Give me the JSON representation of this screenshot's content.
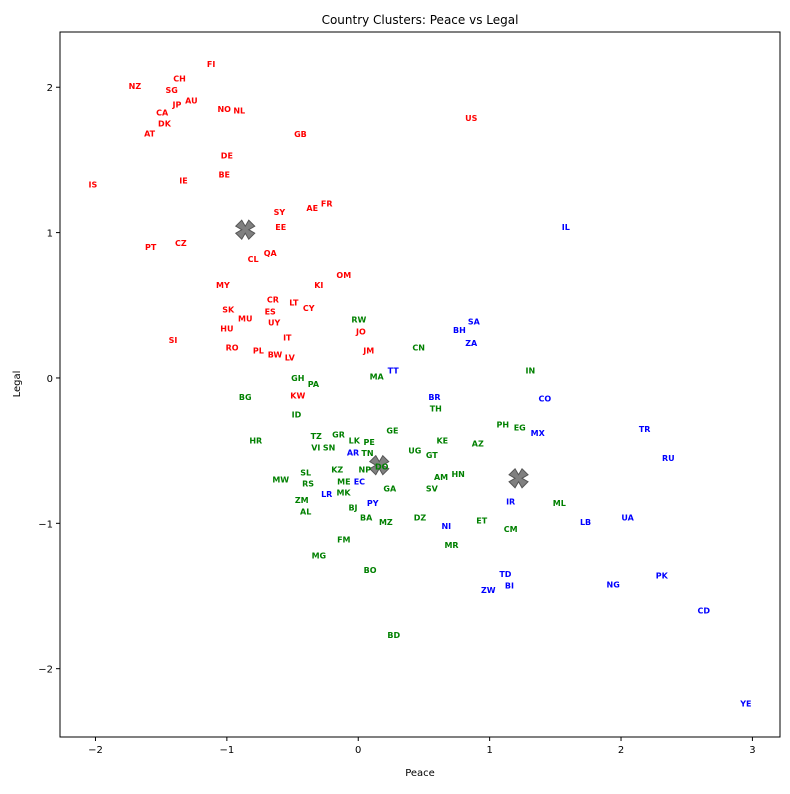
{
  "chart_data": {
    "type": "scatter",
    "title": "Country Clusters: Peace vs Legal",
    "xlabel": "Peace",
    "ylabel": "Legal",
    "xlim": [
      -2.27,
      3.21
    ],
    "ylim": [
      -2.47,
      2.38
    ],
    "xticks": [
      -2,
      -1,
      0,
      1,
      2,
      3
    ],
    "yticks": [
      -2,
      -1,
      0,
      1,
      2
    ],
    "grid": false,
    "cluster_colors": {
      "0": "#ff0000",
      "1": "#008000",
      "2": "#0000ff"
    },
    "centroid_color": "#808080",
    "centroids": [
      [
        -0.86,
        1.02
      ],
      [
        0.16,
        -0.6
      ],
      [
        1.22,
        -0.69
      ]
    ],
    "points": [
      [
        "FI",
        -1.12,
        2.16,
        0
      ],
      [
        "NZ",
        -1.7,
        2.01,
        0
      ],
      [
        "CH",
        -1.36,
        2.06,
        0
      ],
      [
        "SG",
        -1.42,
        1.98,
        0
      ],
      [
        "JP",
        -1.38,
        1.88,
        0
      ],
      [
        "AU",
        -1.27,
        1.91,
        0
      ],
      [
        "CA",
        -1.47,
        1.84,
        0
      ],
      [
        "DK",
        -1.49,
        1.77,
        0
      ],
      [
        "AT",
        -1.55,
        1.71,
        0
      ],
      [
        "NO",
        -1.02,
        1.85,
        0
      ],
      [
        "NL",
        -1.02,
        1.84,
        0
      ],
      [
        "GB",
        -0.44,
        1.68,
        0
      ],
      [
        "US",
        0.86,
        1.79,
        0
      ],
      [
        "DE",
        -1.0,
        1.53,
        0
      ],
      [
        "BE",
        -1.02,
        1.4,
        0
      ],
      [
        "IE",
        -1.33,
        1.36,
        0
      ],
      [
        "IS",
        -2.02,
        1.33,
        0
      ],
      [
        "SY",
        -0.6,
        1.14,
        0
      ],
      [
        "AE",
        -0.35,
        1.17,
        0
      ],
      [
        "FR",
        -0.24,
        1.2,
        0
      ],
      [
        "EE",
        -0.59,
        1.04,
        0
      ],
      [
        "PT",
        -1.58,
        0.9,
        0
      ],
      [
        "CZ",
        -1.35,
        0.93,
        0
      ],
      [
        "CL",
        -0.8,
        0.82,
        0
      ],
      [
        "QA",
        -0.67,
        0.86,
        0
      ],
      [
        "OM",
        -0.11,
        0.71,
        0
      ],
      [
        "KI",
        -0.3,
        0.64,
        0
      ],
      [
        "MY",
        -1.03,
        0.64,
        0
      ],
      [
        "CR",
        -0.65,
        0.54,
        0
      ],
      [
        "ES",
        -0.67,
        0.52,
        0
      ],
      [
        "LT",
        -0.49,
        0.52,
        0
      ],
      [
        "CY",
        -0.43,
        0.48,
        0
      ],
      [
        "SK",
        -0.99,
        0.47,
        0
      ],
      [
        "MU",
        -0.86,
        0.41,
        0
      ],
      [
        "UY",
        -0.64,
        0.43,
        0
      ],
      [
        "HU",
        -1.0,
        0.34,
        0
      ],
      [
        "IT",
        -0.54,
        0.28,
        0
      ],
      [
        "SI",
        -1.41,
        0.26,
        0
      ],
      [
        "RO",
        -0.96,
        0.21,
        0
      ],
      [
        "PL",
        -0.76,
        0.19,
        0
      ],
      [
        "BW",
        -0.71,
        0.16,
        0
      ],
      [
        "LV",
        -0.62,
        0.14,
        0
      ],
      [
        "JO",
        0.02,
        0.32,
        0
      ],
      [
        "JM",
        0.08,
        0.19,
        0
      ],
      [
        "KW",
        -0.46,
        -0.12,
        0
      ],
      [
        "RW",
        0.02,
        0.38,
        1
      ],
      [
        "CN",
        0.46,
        0.21,
        1
      ],
      [
        "MA",
        0.14,
        0.01,
        1
      ],
      [
        "GH",
        -0.46,
        0.0,
        1
      ],
      [
        "PA",
        -0.44,
        -0.04,
        1
      ],
      [
        "BG",
        -0.86,
        -0.13,
        1
      ],
      [
        "ID",
        -0.47,
        -0.25,
        1
      ],
      [
        "TH",
        0.59,
        -0.21,
        1
      ],
      [
        "IN",
        1.31,
        0.05,
        1
      ],
      [
        "PH",
        1.1,
        -0.32,
        1
      ],
      [
        "EG",
        1.13,
        -0.34,
        1
      ],
      [
        "HR",
        -0.78,
        -0.43,
        1
      ],
      [
        "TZ",
        -0.32,
        -0.4,
        1
      ],
      [
        "GR",
        -0.15,
        -0.39,
        1
      ],
      [
        "SN",
        -0.26,
        -0.45,
        1
      ],
      [
        "VI",
        -0.27,
        -0.48,
        1
      ],
      [
        "LK",
        -0.03,
        -0.43,
        1
      ],
      [
        "PE",
        0.03,
        -0.44,
        1
      ],
      [
        "TN",
        0.07,
        -0.44,
        1
      ],
      [
        "GE",
        0.26,
        -0.36,
        1
      ],
      [
        "KE",
        0.64,
        -0.43,
        1
      ],
      [
        "AZ",
        0.91,
        -0.45,
        1
      ],
      [
        "UG",
        0.43,
        -0.5,
        1
      ],
      [
        "GT",
        0.56,
        -0.53,
        1
      ],
      [
        "SL",
        -0.4,
        -0.65,
        1
      ],
      [
        "KZ",
        -0.16,
        -0.63,
        1
      ],
      [
        "ME",
        -0.14,
        -0.67,
        1
      ],
      [
        "NP",
        0.05,
        -0.63,
        1
      ],
      [
        "DO",
        0.08,
        -0.61,
        1
      ],
      [
        "MW",
        -0.59,
        -0.7,
        1
      ],
      [
        "RS",
        -0.42,
        -0.7,
        1
      ],
      [
        "AM",
        0.63,
        -0.68,
        1
      ],
      [
        "HN",
        0.73,
        -0.66,
        1
      ],
      [
        "MK",
        -0.15,
        -0.76,
        1
      ],
      [
        "GA",
        0.24,
        -0.76,
        1
      ],
      [
        "SV",
        0.56,
        -0.76,
        1
      ],
      [
        "ZM",
        -0.43,
        -0.84,
        1
      ],
      [
        "AL",
        -0.4,
        -0.87,
        1
      ],
      [
        "BJ",
        -0.04,
        -0.89,
        1
      ],
      [
        "BA",
        0.03,
        -0.96,
        1
      ],
      [
        "MZ",
        0.21,
        -0.99,
        1
      ],
      [
        "DZ",
        0.47,
        -0.96,
        1
      ],
      [
        "ET",
        0.94,
        -0.98,
        1
      ],
      [
        "ML",
        1.53,
        -0.86,
        1
      ],
      [
        "CM",
        1.16,
        -1.04,
        1
      ],
      [
        "FM",
        -0.11,
        -1.11,
        1
      ],
      [
        "MR",
        0.71,
        -1.15,
        1
      ],
      [
        "MG",
        -0.3,
        -1.22,
        1
      ],
      [
        "BO",
        0.09,
        -1.32,
        1
      ],
      [
        "BD",
        0.27,
        -1.77,
        1
      ],
      [
        "IL",
        1.58,
        1.04,
        2
      ],
      [
        "SA",
        0.88,
        0.39,
        2
      ],
      [
        "BH",
        0.77,
        0.33,
        2
      ],
      [
        "ZA",
        0.86,
        0.24,
        2
      ],
      [
        "TT",
        0.19,
        0.05,
        2
      ],
      [
        "BR",
        0.58,
        -0.13,
        2
      ],
      [
        "CO",
        1.42,
        -0.14,
        2
      ],
      [
        "MX",
        1.29,
        -0.38,
        2
      ],
      [
        "TR",
        2.18,
        -0.35,
        2
      ],
      [
        "RU",
        2.36,
        -0.55,
        2
      ],
      [
        "AR",
        -0.04,
        -0.48,
        2
      ],
      [
        "EC",
        -0.06,
        -0.69,
        2
      ],
      [
        "LR",
        -0.24,
        -0.8,
        2
      ],
      [
        "PY",
        0.11,
        -0.86,
        2
      ],
      [
        "IR",
        1.16,
        -0.85,
        2
      ],
      [
        "NI",
        0.67,
        -1.02,
        2
      ],
      [
        "LB",
        1.73,
        -0.99,
        2
      ],
      [
        "UA",
        2.05,
        -0.96,
        2
      ],
      [
        "TD",
        1.12,
        -1.35,
        2
      ],
      [
        "BI",
        1.12,
        -1.42,
        2
      ],
      [
        "ZW",
        0.99,
        -1.46,
        2
      ],
      [
        "NG",
        1.94,
        -1.42,
        2
      ],
      [
        "PK",
        2.31,
        -1.36,
        2
      ],
      [
        "CD",
        2.63,
        -1.6,
        2
      ],
      [
        "YE",
        2.95,
        -2.24,
        2
      ]
    ]
  }
}
